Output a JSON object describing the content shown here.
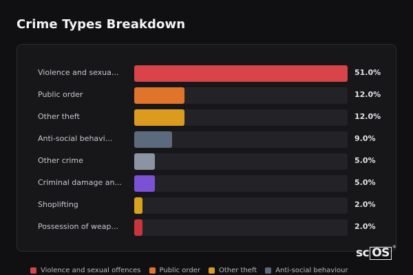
{
  "header": {
    "title": "Crime Types Breakdown"
  },
  "chart_data": {
    "type": "bar",
    "orientation": "horizontal",
    "title": "Crime Types Breakdown",
    "categories": [
      "Violence and sexua...",
      "Public order",
      "Other theft",
      "Anti-social behavi...",
      "Other crime",
      "Criminal damage an...",
      "Shoplifting",
      "Possession of weap..."
    ],
    "values": [
      51.0,
      12.0,
      12.0,
      9.0,
      5.0,
      5.0,
      2.0,
      2.0
    ],
    "value_labels": [
      "51.0%",
      "12.0%",
      "12.0%",
      "9.0%",
      "5.0%",
      "5.0%",
      "2.0%",
      "2.0%"
    ],
    "colors": [
      "#d94448",
      "#e0742a",
      "#dc9a1f",
      "#5c6a7e",
      "#8c94a3",
      "#7b52d6",
      "#d9a21c",
      "#c8353b"
    ],
    "xlim": [
      0,
      51
    ],
    "legend": {
      "placement": "bottom",
      "items": [
        {
          "label": "Violence and sexual offences",
          "color": "#d94448"
        },
        {
          "label": "Public order",
          "color": "#e0742a"
        },
        {
          "label": "Other theft",
          "color": "#dc9a1f"
        },
        {
          "label": "Anti-social behaviour",
          "color": "#5c6a7e"
        }
      ]
    }
  },
  "logo": {
    "text_plain": "sc",
    "text_boxed": "OS",
    "mark": "®"
  }
}
